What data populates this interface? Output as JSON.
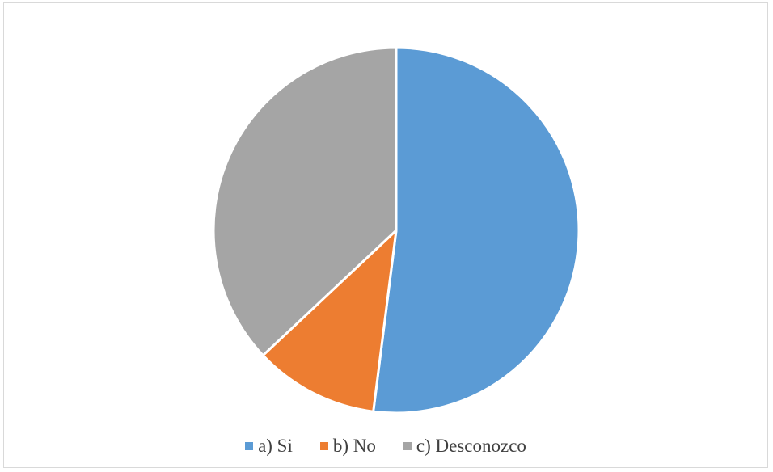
{
  "chart_data": {
    "type": "pie",
    "title": "",
    "slices": [
      {
        "label": "a) Si",
        "value": 52,
        "color": "#5B9BD5"
      },
      {
        "label": "b) No",
        "value": 11,
        "color": "#ED7D31"
      },
      {
        "label": "c) Desconozco",
        "value": 37,
        "color": "#A5A5A5"
      }
    ],
    "legend_position": "bottom"
  }
}
